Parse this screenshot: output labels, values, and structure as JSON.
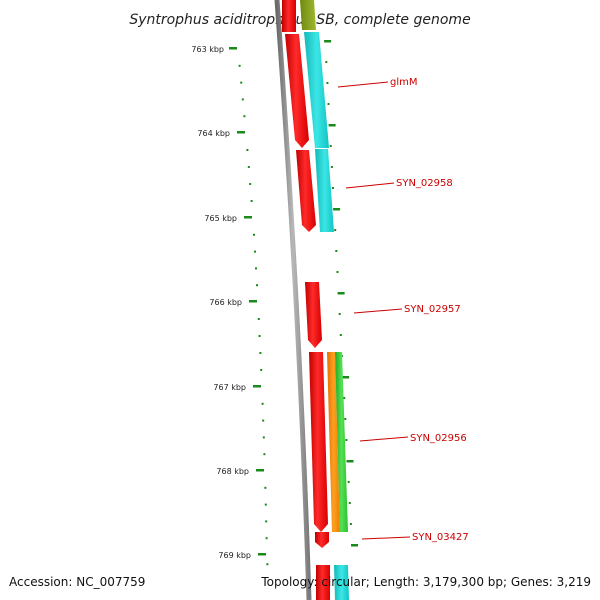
{
  "title": "Syntrophus aciditrophicus SB, complete genome",
  "footer": {
    "accession": "Accession: NC_007759",
    "topology": "Topology: circular; Length: 3,179,300 bp; Genes: 3,219"
  },
  "colors": {
    "backbone": "#8a8a8a",
    "tick": "#1a8a1a",
    "label_line": "#cc0000",
    "forward_gene": "#ff0000",
    "cyan_track": "#19d4d4",
    "orange_track": "#ff8c00",
    "green_track": "#33cc33",
    "olive_track": "#8aa020"
  },
  "ticks": [
    {
      "label": "763 kbp"
    },
    {
      "label": "764 kbp"
    },
    {
      "label": "765 kbp"
    },
    {
      "label": "766 kbp"
    },
    {
      "label": "767 kbp"
    },
    {
      "label": "768 kbp"
    },
    {
      "label": "769 kbp"
    }
  ],
  "genes": [
    {
      "label": "glmM"
    },
    {
      "label": "SYN_02958"
    },
    {
      "label": "SYN_02957"
    },
    {
      "label": "SYN_02956"
    },
    {
      "label": "SYN_03427"
    }
  ]
}
